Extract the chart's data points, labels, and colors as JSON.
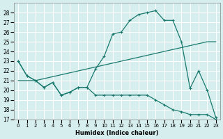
{
  "xlabel": "Humidex (Indice chaleur)",
  "ylabel": "",
  "bg_color": "#d6eeee",
  "grid_color": "#ffffff",
  "line_color": "#1a7a6e",
  "xlim": [
    -0.5,
    23.5
  ],
  "ylim": [
    17,
    29
  ],
  "yticks": [
    17,
    18,
    19,
    20,
    21,
    22,
    23,
    24,
    25,
    26,
    27,
    28
  ],
  "xticks": [
    0,
    1,
    2,
    3,
    4,
    5,
    6,
    7,
    8,
    9,
    10,
    11,
    12,
    13,
    14,
    15,
    16,
    17,
    18,
    19,
    20,
    21,
    22,
    23
  ],
  "line1_x": [
    0,
    1,
    2,
    3,
    4,
    5,
    6,
    7,
    8,
    9,
    10,
    11,
    12,
    13,
    14,
    15,
    16,
    17,
    18,
    19,
    20,
    21,
    22,
    23
  ],
  "line1_y": [
    23.0,
    21.5,
    21.0,
    20.3,
    20.8,
    19.5,
    19.8,
    20.3,
    20.3,
    19.5,
    19.5,
    19.5,
    19.5,
    19.5,
    19.5,
    19.5,
    19.0,
    18.5,
    18.0,
    17.8,
    17.5,
    17.5,
    17.5,
    17.0
  ],
  "line2_x": [
    0,
    1,
    2,
    3,
    4,
    5,
    6,
    7,
    8,
    9,
    10,
    11,
    12,
    13,
    14,
    15,
    16,
    17,
    18,
    19,
    20,
    21,
    22,
    23
  ],
  "line2_y": [
    21.0,
    21.0,
    21.0,
    21.2,
    21.4,
    21.6,
    21.8,
    22.0,
    22.2,
    22.4,
    22.6,
    22.8,
    23.0,
    23.2,
    23.4,
    23.6,
    23.8,
    24.0,
    24.2,
    24.4,
    24.6,
    24.8,
    25.0,
    25.0
  ],
  "line3_x": [
    0,
    1,
    2,
    3,
    4,
    5,
    6,
    7,
    8,
    9,
    10,
    11,
    12,
    13,
    14,
    15,
    16,
    17,
    18,
    19,
    20,
    21,
    22,
    23
  ],
  "line3_y": [
    23.0,
    21.5,
    21.0,
    20.3,
    20.8,
    19.5,
    19.8,
    20.3,
    20.3,
    22.2,
    23.5,
    25.8,
    26.0,
    27.2,
    27.8,
    28.0,
    28.2,
    27.2,
    27.2,
    25.0,
    20.2,
    22.0,
    20.0,
    17.2
  ]
}
